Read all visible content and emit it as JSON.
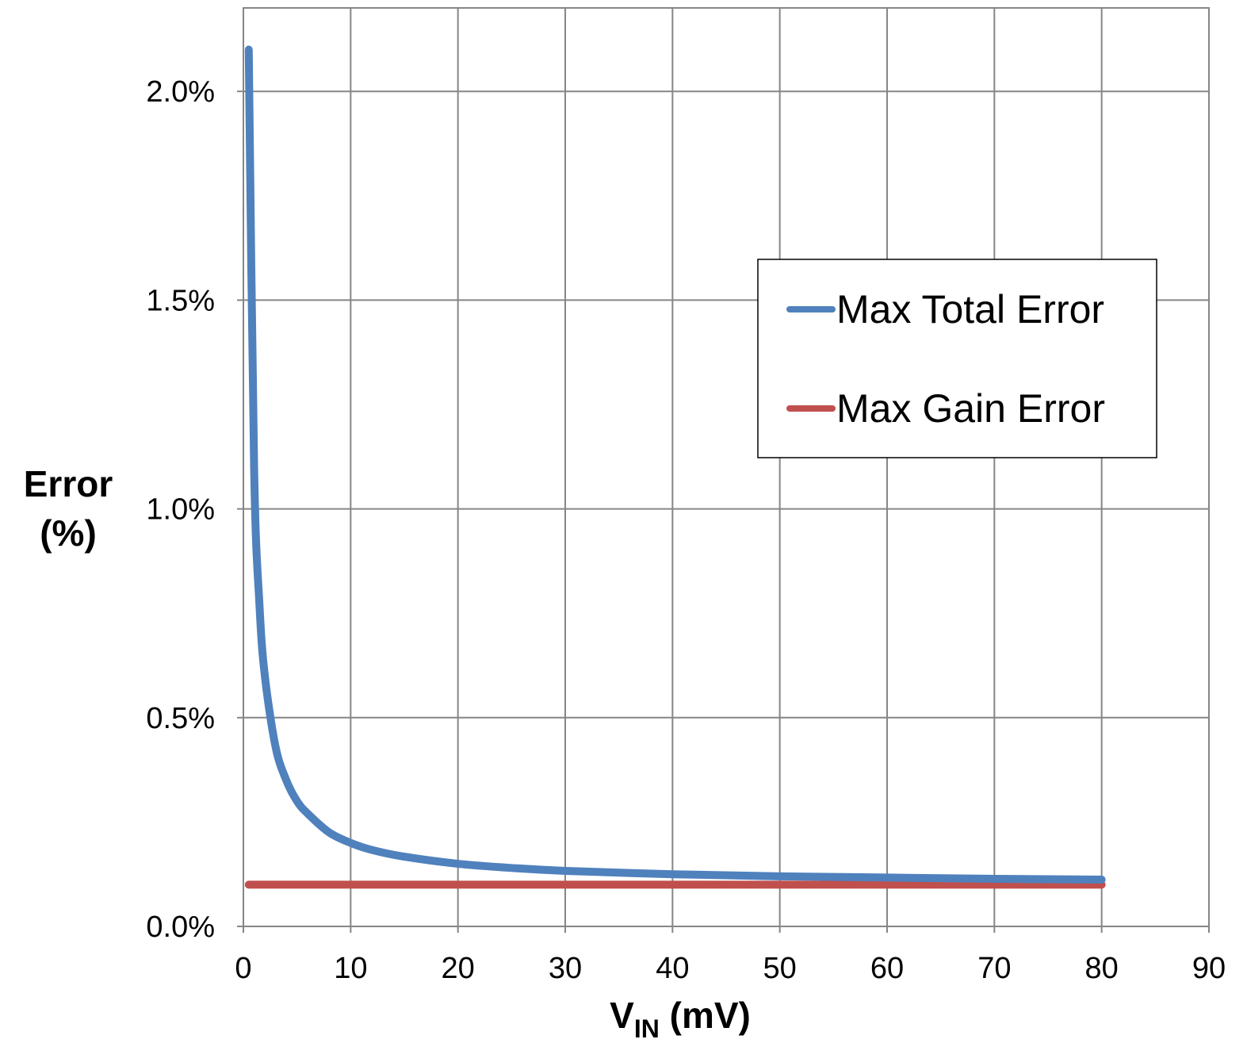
{
  "chart_data": {
    "type": "line",
    "xlabel_main": "V",
    "xlabel_sub": "IN",
    "xlabel_unit": " (mV)",
    "ylabel_line1": "Error",
    "ylabel_line2": "(%)",
    "xlim": [
      0,
      90
    ],
    "ylim": [
      0,
      2.2
    ],
    "x_ticks": [
      "0",
      "10",
      "20",
      "30",
      "40",
      "50",
      "60",
      "70",
      "80",
      "90"
    ],
    "y_ticks": [
      "0.0%",
      "0.5%",
      "1.0%",
      "1.5%",
      "2.0%"
    ],
    "grid": true,
    "legend_position": "right",
    "series": [
      {
        "name": "Max Total Error",
        "color": "#4f81bd",
        "x": [
          0.5,
          1,
          1.5,
          2,
          3,
          4,
          5,
          6,
          8,
          10,
          12,
          15,
          20,
          25,
          30,
          40,
          50,
          60,
          70,
          80
        ],
        "y": [
          2.1,
          1.1,
          0.77,
          0.6,
          0.43,
          0.35,
          0.3,
          0.27,
          0.225,
          0.2,
          0.183,
          0.167,
          0.15,
          0.14,
          0.133,
          0.125,
          0.12,
          0.117,
          0.114,
          0.112
        ]
      },
      {
        "name": "Max Gain Error",
        "color": "#c0504d",
        "x": [
          0.5,
          80
        ],
        "y": [
          0.1,
          0.1
        ]
      }
    ]
  }
}
